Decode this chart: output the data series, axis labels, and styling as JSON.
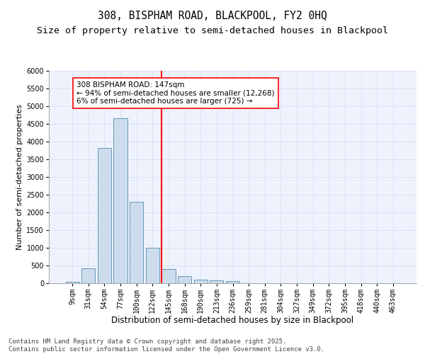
{
  "title1": "308, BISPHAM ROAD, BLACKPOOL, FY2 0HQ",
  "title2": "Size of property relative to semi-detached houses in Blackpool",
  "xlabel": "Distribution of semi-detached houses by size in Blackpool",
  "ylabel": "Number of semi-detached properties",
  "bar_labels": [
    "9sqm",
    "31sqm",
    "54sqm",
    "77sqm",
    "100sqm",
    "122sqm",
    "145sqm",
    "168sqm",
    "190sqm",
    "213sqm",
    "236sqm",
    "259sqm",
    "281sqm",
    "304sqm",
    "327sqm",
    "349sqm",
    "372sqm",
    "395sqm",
    "418sqm",
    "440sqm",
    "463sqm"
  ],
  "bar_values": [
    50,
    430,
    3820,
    4670,
    2300,
    1010,
    400,
    200,
    100,
    75,
    55,
    0,
    0,
    0,
    0,
    0,
    0,
    0,
    0,
    0,
    0
  ],
  "bar_color": "#ccdcec",
  "bar_edge_color": "#6699bb",
  "vline_color": "red",
  "annotation_text": "308 BISPHAM ROAD: 147sqm\n← 94% of semi-detached houses are smaller (12,268)\n6% of semi-detached houses are larger (725) →",
  "annotation_box_color": "white",
  "annotation_box_edge_color": "red",
  "ylim": [
    0,
    6000
  ],
  "yticks": [
    0,
    500,
    1000,
    1500,
    2000,
    2500,
    3000,
    3500,
    4000,
    4500,
    5000,
    5500,
    6000
  ],
  "grid_color": "#d8dff0",
  "background_color": "#eef2fc",
  "footer_text": "Contains HM Land Registry data © Crown copyright and database right 2025.\nContains public sector information licensed under the Open Government Licence v3.0.",
  "title_fontsize": 10.5,
  "subtitle_fontsize": 9.5,
  "xlabel_fontsize": 8.5,
  "ylabel_fontsize": 8,
  "tick_fontsize": 7,
  "annotation_fontsize": 7.5,
  "footer_fontsize": 6.5
}
